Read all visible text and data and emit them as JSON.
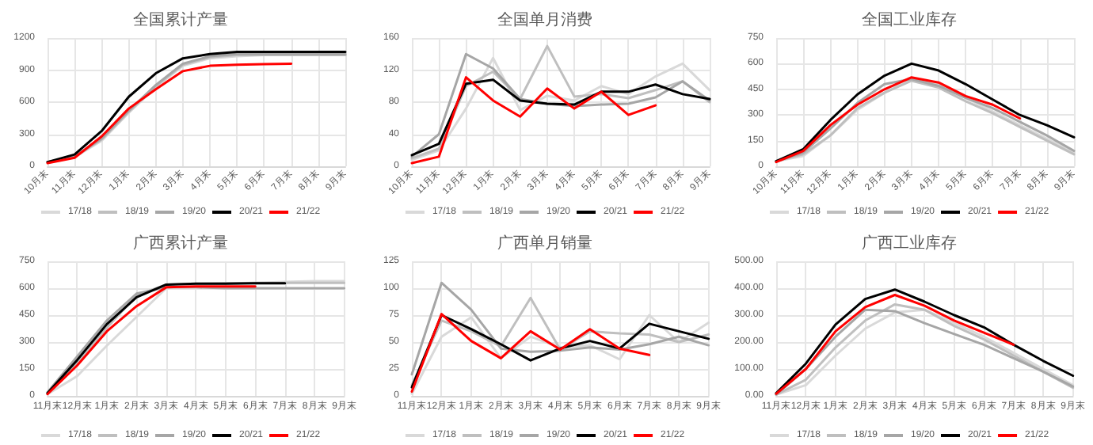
{
  "chart_data": [
    {
      "type": "line",
      "title": "全国累计产量",
      "categories": [
        "10月末",
        "11月末",
        "12月末",
        "1月末",
        "2月末",
        "3月末",
        "4月末",
        "5月末",
        "6月末",
        "7月末",
        "8月末",
        "9月末"
      ],
      "ylim": [
        0,
        1200
      ],
      "yticks": [
        0,
        300,
        600,
        900,
        1200
      ],
      "grid": true,
      "legend": "bottom",
      "marker": "none",
      "series": [
        {
          "name": "17/18",
          "color": "#d9d9d9",
          "values": [
            40,
            85,
            240,
            500,
            740,
            940,
            1010,
            1030,
            1040,
            1040,
            1040,
            1040
          ]
        },
        {
          "name": "18/19",
          "color": "#bfbfbf",
          "values": [
            40,
            90,
            250,
            510,
            750,
            950,
            1020,
            1040,
            1040,
            1040,
            1040,
            1040
          ]
        },
        {
          "name": "19/20",
          "color": "#a6a6a6",
          "values": [
            40,
            90,
            260,
            520,
            760,
            960,
            1030,
            1050,
            1050,
            1050,
            1050,
            1050
          ]
        },
        {
          "name": "20/21",
          "color": "#000000",
          "values": [
            40,
            110,
            330,
            650,
            870,
            1010,
            1050,
            1070,
            1070,
            1070,
            1070,
            1070
          ]
        },
        {
          "name": "21/22",
          "color": "#ff0000",
          "values": [
            30,
            80,
            280,
            540,
            720,
            890,
            940,
            950,
            955,
            960,
            null,
            null
          ]
        }
      ]
    },
    {
      "type": "line",
      "title": "全国单月消费",
      "categories": [
        "10月末",
        "11月末",
        "12月末",
        "1月末",
        "2月末",
        "3月末",
        "4月末",
        "5月末",
        "6月末",
        "7月末",
        "8月末",
        "9月末"
      ],
      "ylim": [
        0,
        160
      ],
      "yticks": [
        0,
        40,
        80,
        120,
        160
      ],
      "grid": true,
      "legend": "bottom",
      "marker": "none",
      "series": [
        {
          "name": "17/18",
          "color": "#d9d9d9",
          "values": [
            8,
            20,
            72,
            135,
            70,
            88,
            82,
            100,
            90,
            112,
            128,
            95
          ]
        },
        {
          "name": "18/19",
          "color": "#bfbfbf",
          "values": [
            10,
            22,
            100,
            118,
            84,
            150,
            87,
            90,
            85,
            95,
            106,
            80
          ]
        },
        {
          "name": "19/20",
          "color": "#a6a6a6",
          "values": [
            12,
            40,
            140,
            122,
            84,
            78,
            75,
            77,
            78,
            86,
            106,
            82
          ]
        },
        {
          "name": "20/21",
          "color": "#000000",
          "values": [
            14,
            28,
            103,
            108,
            82,
            78,
            77,
            93,
            93,
            102,
            90,
            84
          ]
        },
        {
          "name": "21/22",
          "color": "#ff0000",
          "values": [
            4,
            12,
            111,
            82,
            62,
            97,
            72,
            93,
            64,
            76,
            null,
            null
          ]
        }
      ]
    },
    {
      "type": "line",
      "title": "全国工业库存",
      "categories": [
        "10月末",
        "11月末",
        "12月末",
        "1月末",
        "2月末",
        "3月末",
        "4月末",
        "5月末",
        "6月末",
        "7月末",
        "8月末",
        "9月末"
      ],
      "ylim": [
        0,
        750
      ],
      "yticks": [
        0,
        150,
        300,
        450,
        600,
        750
      ],
      "grid": true,
      "legend": "bottom",
      "marker": "none",
      "series": [
        {
          "name": "17/18",
          "color": "#d9d9d9",
          "values": [
            30,
            60,
            180,
            330,
            430,
            510,
            480,
            400,
            320,
            240,
            160,
            80
          ]
        },
        {
          "name": "18/19",
          "color": "#bfbfbf",
          "values": [
            30,
            70,
            180,
            340,
            430,
            500,
            460,
            380,
            310,
            230,
            150,
            70
          ]
        },
        {
          "name": "19/20",
          "color": "#a6a6a6",
          "values": [
            30,
            80,
            220,
            370,
            480,
            510,
            470,
            400,
            340,
            260,
            180,
            90
          ]
        },
        {
          "name": "20/21",
          "color": "#000000",
          "values": [
            30,
            100,
            270,
            420,
            530,
            600,
            560,
            480,
            390,
            300,
            240,
            170
          ]
        },
        {
          "name": "21/22",
          "color": "#ff0000",
          "values": [
            25,
            90,
            240,
            360,
            450,
            520,
            490,
            410,
            360,
            280,
            null,
            null
          ]
        }
      ]
    },
    {
      "type": "line",
      "title": "广西累计产量",
      "categories": [
        "11月末",
        "12月末",
        "1月末",
        "2月末",
        "3月末",
        "4月末",
        "5月末",
        "6月末",
        "7月末",
        "8月末",
        "9月末"
      ],
      "ylim": [
        0,
        750
      ],
      "yticks": [
        0,
        150,
        300,
        450,
        600,
        750
      ],
      "grid": true,
      "legend": "bottom",
      "marker": "none",
      "series": [
        {
          "name": "17/18",
          "color": "#d9d9d9",
          "values": [
            10,
            110,
            280,
            440,
            600,
            620,
            625,
            630,
            635,
            640,
            640
          ]
        },
        {
          "name": "18/19",
          "color": "#bfbfbf",
          "values": [
            15,
            190,
            380,
            560,
            620,
            625,
            628,
            630,
            630,
            630,
            630
          ]
        },
        {
          "name": "19/20",
          "color": "#a6a6a6",
          "values": [
            20,
            220,
            420,
            570,
            605,
            605,
            600,
            600,
            600,
            600,
            600
          ]
        },
        {
          "name": "20/21",
          "color": "#000000",
          "values": [
            15,
            200,
            400,
            550,
            620,
            625,
            625,
            628,
            628,
            null,
            null
          ]
        },
        {
          "name": "21/22",
          "color": "#ff0000",
          "values": [
            10,
            170,
            360,
            500,
            605,
            610,
            610,
            610,
            null,
            null,
            null
          ]
        }
      ]
    },
    {
      "type": "line",
      "title": "广西单月销量",
      "categories": [
        "11月末",
        "12月末",
        "1月末",
        "2月末",
        "3月末",
        "4月末",
        "5月末",
        "6月末",
        "7月末",
        "8月末",
        "9月末"
      ],
      "ylim": [
        0,
        125
      ],
      "yticks": [
        0,
        25,
        50,
        75,
        100,
        125
      ],
      "grid": true,
      "legend": "bottom",
      "marker": "none",
      "series": [
        {
          "name": "17/18",
          "color": "#d9d9d9",
          "values": [
            2,
            55,
            73,
            35,
            55,
            45,
            47,
            34,
            75,
            50,
            68
          ]
        },
        {
          "name": "18/19",
          "color": "#bfbfbf",
          "values": [
            10,
            70,
            60,
            46,
            91,
            43,
            60,
            58,
            57,
            50,
            57
          ]
        },
        {
          "name": "19/20",
          "color": "#a6a6a6",
          "values": [
            20,
            105,
            80,
            44,
            41,
            42,
            45,
            43,
            48,
            55,
            47
          ]
        },
        {
          "name": "20/21",
          "color": "#000000",
          "values": [
            8,
            75,
            62,
            48,
            33,
            44,
            51,
            44,
            67,
            60,
            53
          ]
        },
        {
          "name": "21/22",
          "color": "#ff0000",
          "values": [
            4,
            76,
            51,
            35,
            60,
            43,
            62,
            44,
            38,
            null,
            null
          ]
        }
      ]
    },
    {
      "type": "line",
      "title": "广西工业库存",
      "categories": [
        "11月末",
        "12月末",
        "1月末",
        "2月末",
        "3月末",
        "4月末",
        "5月末",
        "6月末",
        "7月末",
        "8月末",
        "9月末"
      ],
      "ylim": [
        0,
        500
      ],
      "yticks": [
        {
          "value": 0,
          "label": "0.00"
        },
        {
          "value": 100,
          "label": "100.00"
        },
        {
          "value": 200,
          "label": "200.00"
        },
        {
          "value": 300,
          "label": "300.00"
        },
        {
          "value": 400,
          "label": "400.00"
        },
        {
          "value": 500,
          "label": "500.00"
        }
      ],
      "grid": true,
      "legend": "bottom",
      "marker": "none",
      "series": [
        {
          "name": "17/18",
          "color": "#d9d9d9",
          "values": [
            5,
            40,
            150,
            250,
            310,
            320,
            270,
            220,
            160,
            100,
            40
          ]
        },
        {
          "name": "18/19",
          "color": "#bfbfbf",
          "values": [
            5,
            60,
            180,
            280,
            340,
            320,
            260,
            210,
            150,
            90,
            30
          ]
        },
        {
          "name": "19/20",
          "color": "#a6a6a6",
          "values": [
            5,
            100,
            220,
            320,
            315,
            270,
            230,
            190,
            140,
            90,
            35
          ]
        },
        {
          "name": "20/21",
          "color": "#000000",
          "values": [
            10,
            120,
            265,
            360,
            395,
            350,
            300,
            255,
            190,
            130,
            75
          ]
        },
        {
          "name": "21/22",
          "color": "#ff0000",
          "values": [
            8,
            100,
            240,
            330,
            375,
            335,
            280,
            235,
            190,
            null,
            null
          ]
        }
      ]
    }
  ]
}
